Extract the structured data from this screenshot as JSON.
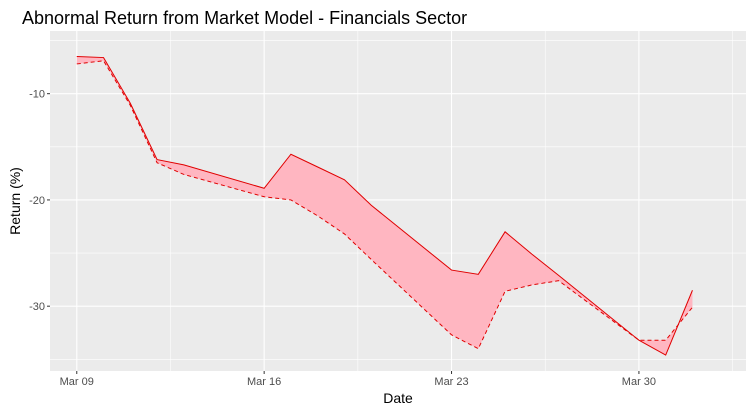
{
  "chart_data": {
    "type": "area",
    "title": "Abnormal Return from Market Model - Financials Sector",
    "xlabel": "Date",
    "ylabel": "Return (%)",
    "x_tick_labels": [
      "Mar 09",
      "Mar 16",
      "Mar 23",
      "Mar 30"
    ],
    "x_tick_dates": [
      "2020-03-09",
      "2020-03-16",
      "2020-03-23",
      "2020-03-30"
    ],
    "y_ticks": [
      -10,
      -20,
      -30
    ],
    "y_tick_labels": [
      "-10",
      "-20",
      "-30"
    ],
    "xlim": [
      "2020-03-08",
      "2020-04-03"
    ],
    "ylim": [
      -36.1,
      -4.1
    ],
    "grid": true,
    "legend": "none",
    "x": [
      "2020-03-09",
      "2020-03-10",
      "2020-03-11",
      "2020-03-12",
      "2020-03-13",
      "2020-03-16",
      "2020-03-17",
      "2020-03-18",
      "2020-03-19",
      "2020-03-20",
      "2020-03-23",
      "2020-03-24",
      "2020-03-25",
      "2020-03-26",
      "2020-03-27",
      "2020-03-30",
      "2020-03-31",
      "2020-04-01"
    ],
    "series": [
      {
        "style": "solid",
        "values": [
          -6.5,
          -6.6,
          -10.9,
          -16.2,
          -16.7,
          -18.9,
          -15.7,
          -16.9,
          -18.1,
          -20.5,
          -26.6,
          -27.0,
          -23.0,
          -25.1,
          -27.1,
          -33.2,
          -34.6,
          -28.5
        ]
      },
      {
        "style": "dashed",
        "values": [
          -7.2,
          -6.9,
          -11.1,
          -16.5,
          -17.6,
          -19.7,
          -20.0,
          -21.5,
          -23.2,
          -25.6,
          -32.7,
          -34.0,
          -28.6,
          -28.0,
          -27.6,
          -33.2,
          -33.2,
          -30.1
        ]
      }
    ],
    "colors": {
      "panel_bg": "#ebebeb",
      "grid": "#ffffff",
      "fill": "#ffb6c1",
      "line": "#e00000",
      "tick": "#333333"
    }
  }
}
